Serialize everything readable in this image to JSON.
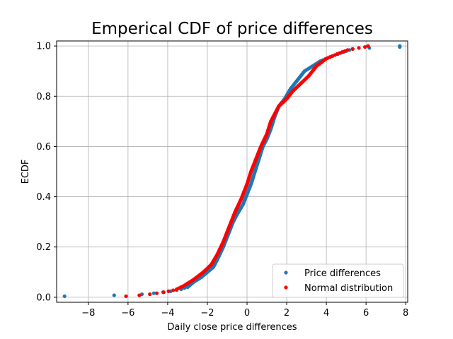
{
  "chart_data": {
    "type": "scatter",
    "title": "Emperical CDF of price differences",
    "xlabel": "Daily close price differences",
    "ylabel": "ECDF",
    "xlim": [
      -9.6,
      8.1
    ],
    "ylim": [
      -0.02,
      1.02
    ],
    "xticks": [
      -8,
      -6,
      -4,
      -2,
      0,
      2,
      4,
      6,
      8
    ],
    "xtick_labels": [
      "−8",
      "−6",
      "−4",
      "−2",
      "0",
      "2",
      "4",
      "6",
      "8"
    ],
    "yticks": [
      0.0,
      0.2,
      0.4,
      0.6,
      0.8,
      1.0
    ],
    "ytick_labels": [
      "0.0",
      "0.2",
      "0.4",
      "0.6",
      "0.8",
      "1.0"
    ],
    "grid": true,
    "legend_position": "bottom-right",
    "n_points": 250,
    "series": [
      {
        "name": "Price differences",
        "color": "#1f77b4",
        "curve": [
          [
            -9.2,
            0.004
          ],
          [
            -6.7,
            0.008
          ],
          [
            -5.3,
            0.012
          ],
          [
            -4.7,
            0.016
          ],
          [
            -4.0,
            0.022
          ],
          [
            -3.4,
            0.03
          ],
          [
            -3.0,
            0.04
          ],
          [
            -2.7,
            0.06
          ],
          [
            -2.3,
            0.08
          ],
          [
            -2.0,
            0.1
          ],
          [
            -1.7,
            0.12
          ],
          [
            -1.5,
            0.15
          ],
          [
            -1.2,
            0.2
          ],
          [
            -1.0,
            0.24
          ],
          [
            -0.7,
            0.3
          ],
          [
            -0.5,
            0.33
          ],
          [
            -0.2,
            0.37
          ],
          [
            0.0,
            0.41
          ],
          [
            0.2,
            0.45
          ],
          [
            0.4,
            0.5
          ],
          [
            0.6,
            0.55
          ],
          [
            0.8,
            0.6
          ],
          [
            1.0,
            0.63
          ],
          [
            1.2,
            0.67
          ],
          [
            1.4,
            0.72
          ],
          [
            1.6,
            0.76
          ],
          [
            1.9,
            0.79
          ],
          [
            2.2,
            0.83
          ],
          [
            2.6,
            0.87
          ],
          [
            2.9,
            0.9
          ],
          [
            3.3,
            0.92
          ],
          [
            3.7,
            0.94
          ],
          [
            4.3,
            0.96
          ],
          [
            5.0,
            0.98
          ],
          [
            5.4,
            0.99
          ],
          [
            7.7,
            0.996
          ]
        ]
      },
      {
        "name": "Normal distribution",
        "color": "#ff0000",
        "curve": [
          [
            -6.1,
            0.004
          ],
          [
            -5.7,
            0.006
          ],
          [
            -4.9,
            0.012
          ],
          [
            -4.2,
            0.02
          ],
          [
            -3.6,
            0.03
          ],
          [
            -3.2,
            0.045
          ],
          [
            -2.7,
            0.07
          ],
          [
            -2.2,
            0.1
          ],
          [
            -1.8,
            0.13
          ],
          [
            -1.5,
            0.17
          ],
          [
            -1.2,
            0.22
          ],
          [
            -0.9,
            0.28
          ],
          [
            -0.6,
            0.34
          ],
          [
            -0.3,
            0.39
          ],
          [
            0.0,
            0.45
          ],
          [
            0.2,
            0.5
          ],
          [
            0.4,
            0.54
          ],
          [
            0.7,
            0.6
          ],
          [
            1.0,
            0.65
          ],
          [
            1.2,
            0.7
          ],
          [
            1.4,
            0.73
          ],
          [
            1.6,
            0.76
          ],
          [
            2.0,
            0.79
          ],
          [
            2.3,
            0.82
          ],
          [
            2.7,
            0.85
          ],
          [
            3.1,
            0.88
          ],
          [
            3.5,
            0.92
          ],
          [
            4.0,
            0.95
          ],
          [
            4.6,
            0.97
          ],
          [
            5.1,
            0.985
          ],
          [
            6.1,
            0.998
          ]
        ]
      }
    ]
  }
}
